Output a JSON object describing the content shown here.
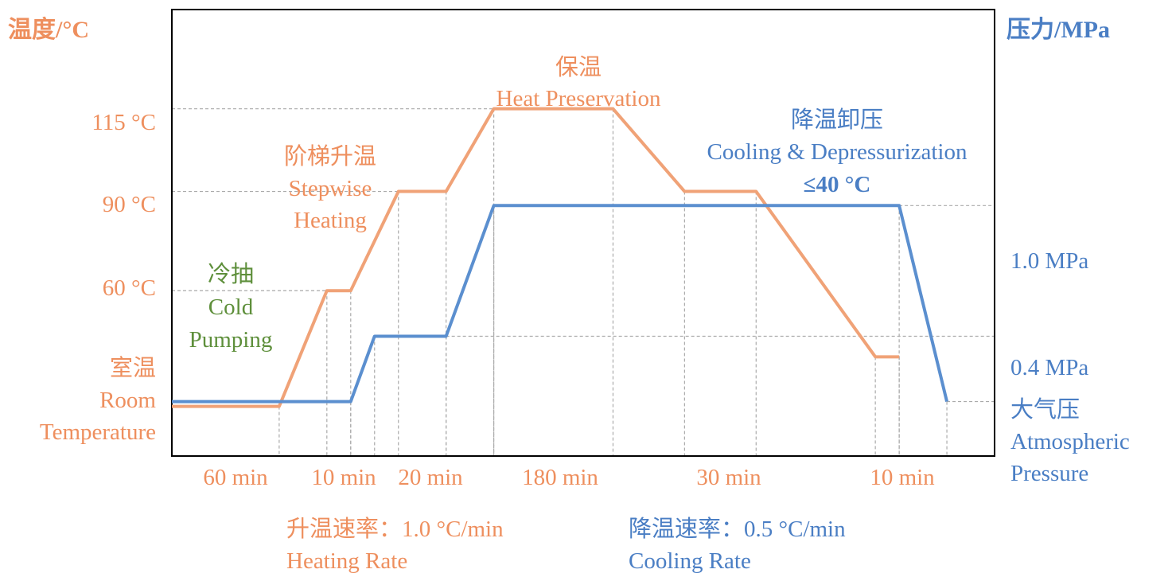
{
  "colors": {
    "temperature": "#f0a277",
    "temperature_text": "#ee8f5e",
    "pressure": "#5b8fcf",
    "pressure_text": "#4a7ec4",
    "cold_pumping": "#5e8f3b",
    "guide": "#aaaaaa"
  },
  "chart_data": {
    "type": "line",
    "x_unit": "min",
    "x_segment_labels": [
      {
        "label": "60 min",
        "from": 0,
        "to": 60
      },
      {
        "label": "10 min",
        "from": 70,
        "to": 80
      },
      {
        "label": "20 min",
        "from": 80,
        "to": 100
      },
      {
        "label": "180 min",
        "from": 100,
        "to": 280
      },
      {
        "label": "30 min",
        "from": 280,
        "to": 310
      },
      {
        "label": "10 min",
        "from": 310,
        "to": 320
      }
    ],
    "y_left": {
      "title": "温度/°C",
      "ticks": [
        {
          "label": "115 °C",
          "value": 115
        },
        {
          "label": "90 °C",
          "value": 90
        },
        {
          "label": "60 °C",
          "value": 60
        },
        {
          "label_zh": "室温",
          "label_en_1": "Room",
          "label_en_2": "Temperature",
          "value": 25
        }
      ],
      "range": [
        10,
        145
      ]
    },
    "y_right": {
      "title": "压力/MPa",
      "ticks": [
        {
          "label": "1.0 MPa",
          "value": 1.0
        },
        {
          "label": "0.4 MPa",
          "value": 0.4
        },
        {
          "label_zh": "大气压",
          "label_en_1": "Atmospheric",
          "label_en_2": "Pressure",
          "value": 0.1
        }
      ],
      "range": [
        -0.15,
        1.9
      ]
    },
    "series": [
      {
        "key": "temperature",
        "axis": "left",
        "points": [
          [
            0,
            25
          ],
          [
            45,
            25
          ],
          [
            65,
            60
          ],
          [
            75,
            60
          ],
          [
            95,
            90
          ],
          [
            115,
            90
          ],
          [
            135,
            115
          ],
          [
            185,
            115
          ],
          [
            215,
            90
          ],
          [
            245,
            90
          ],
          [
            295,
            40
          ],
          [
            305,
            40
          ]
        ]
      },
      {
        "key": "pressure",
        "axis": "right",
        "points": [
          [
            0,
            0.1
          ],
          [
            75,
            0.1
          ],
          [
            85,
            0.4
          ],
          [
            115,
            0.4
          ],
          [
            135,
            1.0
          ],
          [
            305,
            1.0
          ],
          [
            325,
            0.1
          ]
        ]
      }
    ],
    "annotations": {
      "cold_pumping": {
        "zh": "冷抽",
        "en_1": "Cold",
        "en_2": "Pumping"
      },
      "stepwise_heating": {
        "zh": "阶梯升温",
        "en_1": "Stepwise",
        "en_2": "Heating"
      },
      "heat_preservation": {
        "zh": "保温",
        "en": "Heat Preservation"
      },
      "cooling": {
        "zh": "降温卸压",
        "en": "Cooling & Depressurization",
        "limit": "≤40 °C"
      }
    },
    "rates": {
      "heating": {
        "zh": "升温速率：1.0 °C/min",
        "en": "Heating Rate"
      },
      "cooling": {
        "zh": "降温速率：0.5 °C/min",
        "en": "Cooling Rate"
      }
    }
  }
}
